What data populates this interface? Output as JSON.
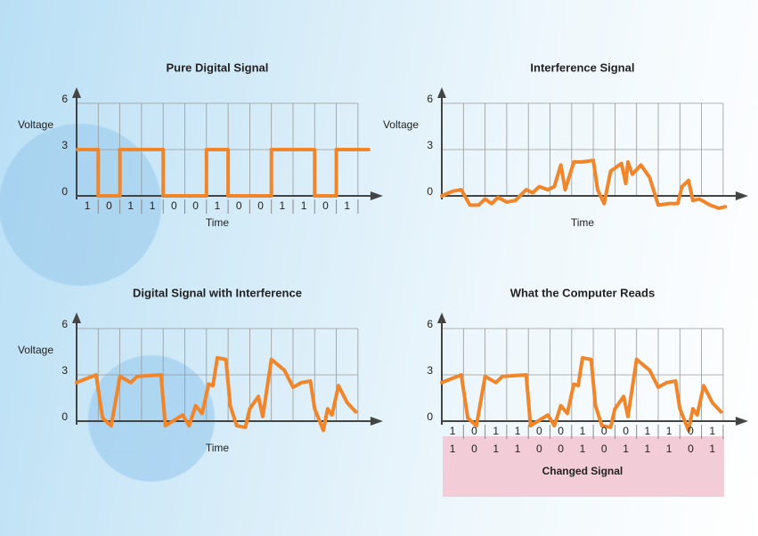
{
  "chart_data": [
    {
      "type": "step",
      "title": "Pure Digital Signal",
      "y_label": "Voltage",
      "x_label": "Time",
      "categories": [
        "1",
        "0",
        "1",
        "1",
        "0",
        "0",
        "1",
        "0",
        "0",
        "1",
        "1",
        "0",
        "1"
      ],
      "values": [
        3,
        0,
        3,
        3,
        0,
        0,
        3,
        0,
        0,
        3,
        3,
        0,
        3
      ],
      "ylim": [
        0,
        6
      ],
      "yticks": [
        0,
        3,
        6
      ],
      "color": "#f0852a"
    },
    {
      "type": "line",
      "title": "Interference Signal",
      "y_label": "Voltage",
      "x_label": "Time",
      "x": [
        0,
        0.5,
        0.9,
        1.3,
        1.7,
        2.0,
        2.3,
        2.6,
        3.0,
        3.4,
        3.9,
        4.2,
        4.5,
        4.9,
        5.2,
        5.5,
        5.7,
        6.1,
        6.5,
        7.0,
        7.2,
        7.5,
        7.8,
        8.3,
        8.5,
        8.6,
        8.8,
        9.2,
        9.6,
        10.0,
        10.5,
        10.9,
        11.1,
        11.4,
        11.6,
        11.9,
        12.4,
        12.8,
        13.1
      ],
      "values": [
        0,
        0.3,
        0.4,
        -0.6,
        -0.6,
        -0.2,
        -0.5,
        -0.1,
        -0.4,
        -0.3,
        0.4,
        0.2,
        0.6,
        0.4,
        0.6,
        2.0,
        0.4,
        2.2,
        2.2,
        2.3,
        0.4,
        -0.5,
        1.6,
        2.1,
        0.8,
        2.2,
        1.4,
        2.0,
        1.2,
        -0.6,
        -0.5,
        -0.5,
        0.6,
        1.0,
        -0.3,
        -0.2,
        -0.6,
        -0.8,
        -0.7
      ],
      "xlim": [
        0,
        13
      ],
      "ylim": [
        0,
        6
      ],
      "yticks": [
        0,
        3,
        6
      ],
      "color": "#f0852a"
    },
    {
      "type": "line",
      "title": "Digital Signal with Interference",
      "y_label": "Voltage",
      "x_label": "Time",
      "x": [
        0,
        0.9,
        1.2,
        1.6,
        2.0,
        2.5,
        2.8,
        3.9,
        4.1,
        4.9,
        5.2,
        5.5,
        5.8,
        6.1,
        6.3,
        6.5,
        6.9,
        7.1,
        7.4,
        7.8,
        8.0,
        8.4,
        8.6,
        9.0,
        9.6,
        10.0,
        10.4,
        10.8,
        11.0,
        11.4,
        11.6,
        11.8,
        12.1,
        12.5,
        12.9
      ],
      "values": [
        2.5,
        3.0,
        0.2,
        -0.3,
        2.9,
        2.5,
        2.9,
        3.0,
        -0.3,
        0.4,
        -0.3,
        1.0,
        0.5,
        2.4,
        2.3,
        4.1,
        4.0,
        1.0,
        -0.3,
        -0.4,
        0.8,
        1.6,
        0.3,
        4.0,
        3.3,
        2.2,
        2.5,
        2.6,
        0.8,
        -0.6,
        0.8,
        0.4,
        2.3,
        1.2,
        0.6
      ],
      "xlim": [
        0,
        13
      ],
      "ylim": [
        0,
        6
      ],
      "yticks": [
        0,
        3,
        6
      ],
      "color": "#f0852a"
    },
    {
      "type": "line",
      "title": "What the Computer Reads",
      "x": [
        0,
        0.9,
        1.2,
        1.6,
        2.0,
        2.5,
        2.8,
        3.9,
        4.1,
        4.9,
        5.2,
        5.5,
        5.8,
        6.1,
        6.3,
        6.5,
        6.9,
        7.1,
        7.4,
        7.8,
        8.0,
        8.4,
        8.6,
        9.0,
        9.6,
        10.0,
        10.4,
        10.8,
        11.0,
        11.4,
        11.6,
        11.8,
        12.1,
        12.5,
        12.9
      ],
      "values": [
        2.5,
        3.0,
        0.2,
        -0.3,
        2.9,
        2.5,
        2.9,
        3.0,
        -0.3,
        0.4,
        -0.3,
        1.0,
        0.5,
        2.4,
        2.3,
        4.1,
        4.0,
        1.0,
        -0.3,
        -0.4,
        0.8,
        1.6,
        0.3,
        4.0,
        3.3,
        2.2,
        2.5,
        2.6,
        0.8,
        -0.6,
        0.8,
        0.4,
        2.3,
        1.2,
        0.6
      ],
      "xlim": [
        0,
        13
      ],
      "ylim": [
        0,
        6
      ],
      "yticks": [
        0,
        3,
        6
      ],
      "color": "#f0852a",
      "sent_bits": [
        "1",
        "0",
        "1",
        "1",
        "0",
        "0",
        "1",
        "0",
        "0",
        "1",
        "1",
        "0",
        "1"
      ],
      "read_bits": [
        "1",
        "0",
        "1",
        "1",
        "0",
        "0",
        "1",
        "0",
        "1",
        "1",
        "1",
        "0",
        "1"
      ],
      "note": "Changed Signal"
    }
  ]
}
